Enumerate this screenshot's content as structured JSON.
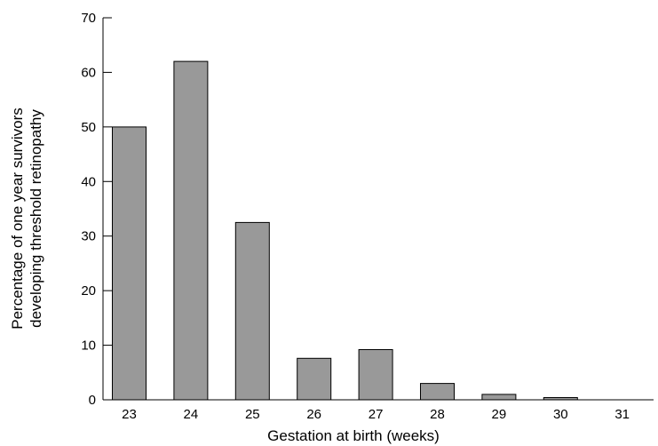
{
  "chart_data": {
    "type": "bar",
    "categories": [
      "23",
      "24",
      "25",
      "26",
      "27",
      "28",
      "29",
      "30",
      "31"
    ],
    "values": [
      50,
      62,
      32.5,
      7.6,
      9.2,
      3,
      1,
      0.4,
      0
    ],
    "xlabel": "Gestation at birth (weeks)",
    "ylabel": [
      "Percentage of one year survivors",
      "developing threshold retinopathy"
    ],
    "ylim": [
      0,
      70
    ],
    "yticks": [
      0,
      10,
      20,
      30,
      40,
      50,
      60,
      70
    ],
    "grid": false,
    "bar_color": "#999999"
  }
}
